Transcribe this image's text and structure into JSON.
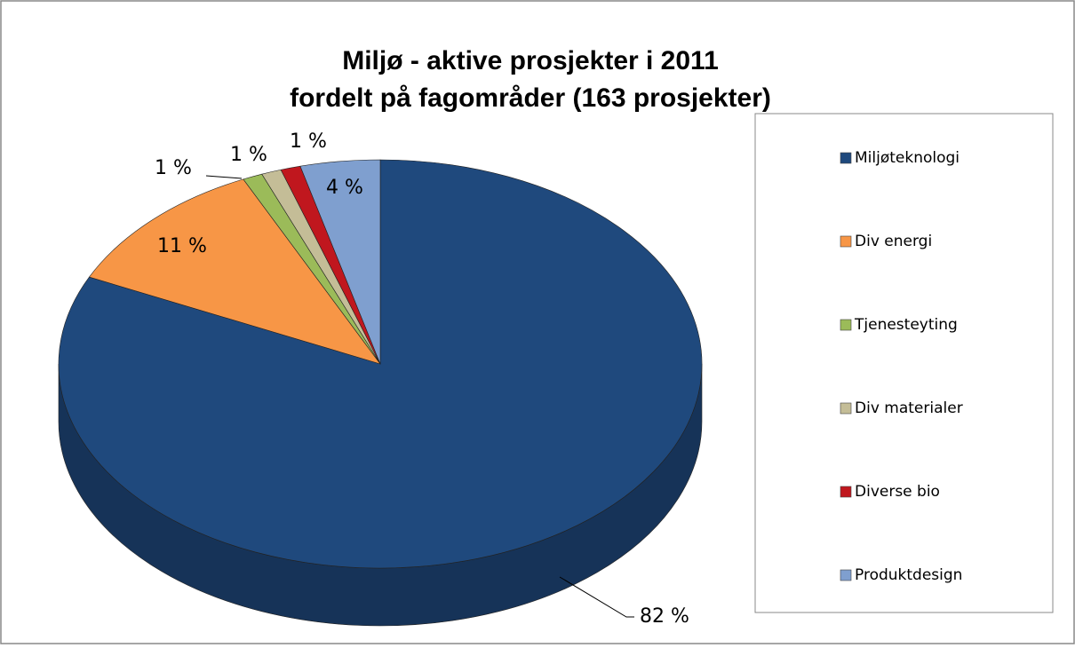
{
  "chart_data": {
    "type": "pie",
    "title": "Miljø - aktive prosjekter i 2011",
    "subtitle": "fordelt på fagområder (163 prosjekter)",
    "categories": [
      "Miljøteknologi",
      "Div energi",
      "Tjenesteyting",
      "Div materialer",
      "Diverse bio",
      "Produktdesign"
    ],
    "values": [
      82,
      11,
      1,
      1,
      1,
      4
    ],
    "value_labels": [
      "82 %",
      "11 %",
      "1 %",
      "1 %",
      "1 %",
      "4 %"
    ],
    "colors": [
      "#1f497d",
      "#f79646",
      "#9bbb59",
      "#c4bd97",
      "#c0171e",
      "#7f9fcf"
    ],
    "legend": "right"
  }
}
